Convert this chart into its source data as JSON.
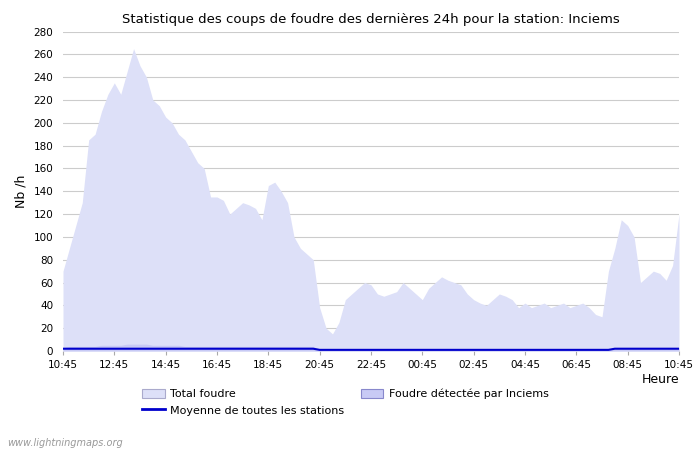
{
  "title": "Statistique des coups de foudre des dernières 24h pour la station: Inciems",
  "xlabel": "Heure",
  "ylabel": "Nb /h",
  "watermark": "www.lightningmaps.org",
  "x_ticks": [
    "10:45",
    "12:45",
    "14:45",
    "16:45",
    "18:45",
    "20:45",
    "22:45",
    "00:45",
    "02:45",
    "04:45",
    "06:45",
    "08:45",
    "10:45"
  ],
  "ylim": [
    0,
    280
  ],
  "yticks": [
    0,
    20,
    40,
    60,
    80,
    100,
    120,
    140,
    160,
    180,
    200,
    220,
    240,
    260,
    280
  ],
  "legend_total_foudre_label": "Total foudre",
  "legend_moyenne_label": "Moyenne de toutes les stations",
  "legend_detected_label": "Foudre détectée par Inciems",
  "color_total_fill": "#dde0f8",
  "color_detected_fill": "#c8caf5",
  "color_moyenne_line": "#0000cc",
  "background_color": "#ffffff",
  "grid_color": "#cccccc",
  "total_foudre": [
    70,
    90,
    110,
    130,
    185,
    190,
    210,
    225,
    235,
    225,
    245,
    265,
    250,
    240,
    220,
    215,
    205,
    200,
    190,
    185,
    175,
    165,
    160,
    135,
    135,
    132,
    120,
    125,
    130,
    128,
    125,
    115,
    145,
    148,
    140,
    130,
    100,
    90,
    85,
    80,
    38,
    20,
    15,
    25,
    45,
    50,
    55,
    60,
    58,
    50,
    48,
    50,
    52,
    60,
    55,
    50,
    45,
    55,
    60,
    65,
    62,
    60,
    58,
    50,
    45,
    42,
    40,
    45,
    50,
    48,
    45,
    38,
    42,
    38,
    40,
    42,
    38,
    40,
    42,
    38,
    40,
    42,
    38,
    32,
    30,
    70,
    90,
    115,
    110,
    100,
    60,
    65,
    70,
    68,
    62,
    75,
    120
  ],
  "detected_foudre": [
    3,
    4,
    4,
    4,
    4,
    4,
    5,
    5,
    5,
    5,
    6,
    6,
    6,
    6,
    5,
    5,
    5,
    5,
    5,
    4,
    4,
    4,
    4,
    4,
    4,
    4,
    4,
    4,
    4,
    4,
    4,
    4,
    4,
    4,
    4,
    4,
    4,
    4,
    4,
    4,
    1,
    1,
    1,
    1,
    1,
    1,
    1,
    1,
    1,
    1,
    1,
    1,
    1,
    1,
    1,
    1,
    1,
    1,
    1,
    1,
    1,
    1,
    1,
    1,
    1,
    1,
    1,
    1,
    1,
    1,
    1,
    1,
    1,
    1,
    1,
    1,
    1,
    1,
    1,
    1,
    1,
    1,
    1,
    1,
    1,
    2,
    2,
    3,
    3,
    3,
    2,
    2,
    2,
    2,
    2,
    3,
    3
  ],
  "moyenne_line": [
    2,
    2,
    2,
    2,
    2,
    2,
    2,
    2,
    2,
    2,
    2,
    2,
    2,
    2,
    2,
    2,
    2,
    2,
    2,
    2,
    2,
    2,
    2,
    2,
    2,
    2,
    2,
    2,
    2,
    2,
    2,
    2,
    2,
    2,
    2,
    2,
    2,
    2,
    2,
    2,
    1,
    1,
    1,
    1,
    1,
    1,
    1,
    1,
    1,
    1,
    1,
    1,
    1,
    1,
    1,
    1,
    1,
    1,
    1,
    1,
    1,
    1,
    1,
    1,
    1,
    1,
    1,
    1,
    1,
    1,
    1,
    1,
    1,
    1,
    1,
    1,
    1,
    1,
    1,
    1,
    1,
    1,
    1,
    1,
    1,
    1,
    2,
    2,
    2,
    2,
    2,
    2,
    2,
    2,
    2,
    2,
    2
  ]
}
